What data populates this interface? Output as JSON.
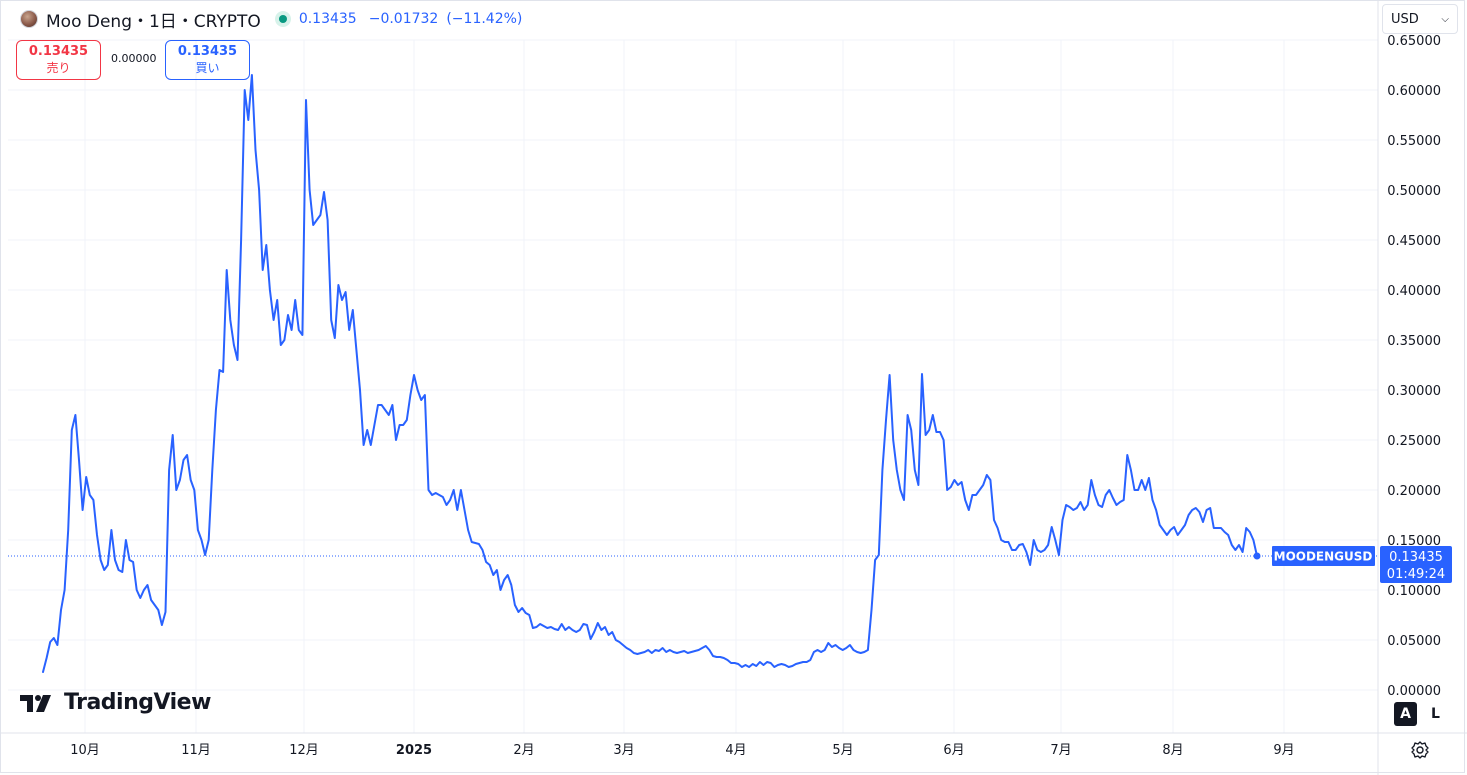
{
  "header": {
    "title": "Moo Deng・1日・CRYPTO",
    "price": "0.13435",
    "change": "−0.01732",
    "change_pct": "(−11.42%)"
  },
  "trade": {
    "sell_price": "0.13435",
    "sell_label": "売り",
    "spread": "0.00000",
    "buy_price": "0.13435",
    "buy_label": "買い"
  },
  "currency": {
    "selected": "USD"
  },
  "logo": {
    "text": "TradingView"
  },
  "buttons": {
    "auto": "A",
    "log": "L"
  },
  "colors": {
    "line": "#2962ff",
    "grid": "#f0f3fa",
    "label_bg": "#2962ff",
    "last_line": "#2962ff"
  },
  "chart_data": {
    "type": "line",
    "x_start": "2024-09-25",
    "y_range": [
      0,
      0.65
    ],
    "y_ticks": [
      "0.00000",
      "0.05000",
      "0.10000",
      "0.15000",
      "0.20000",
      "0.25000",
      "0.30000",
      "0.35000",
      "0.40000",
      "0.45000",
      "0.50000",
      "0.55000",
      "0.60000",
      "0.65000"
    ],
    "x_ticks": [
      "10月",
      "11月",
      "12月",
      "2025",
      "2月",
      "3月",
      "4月",
      "5月",
      "6月",
      "7月",
      "8月",
      "9月"
    ],
    "series": [
      {
        "values": [
          0.018,
          0.032,
          0.048,
          0.052,
          0.045,
          0.08,
          0.1,
          0.16,
          0.26,
          0.275,
          0.23,
          0.18,
          0.213,
          0.195,
          0.19,
          0.155,
          0.13,
          0.12,
          0.125,
          0.16,
          0.13,
          0.12,
          0.118,
          0.15,
          0.13,
          0.128,
          0.1,
          0.092,
          0.1,
          0.105,
          0.09,
          0.085,
          0.08,
          0.065,
          0.078,
          0.22,
          0.255,
          0.2,
          0.21,
          0.23,
          0.235,
          0.21,
          0.2,
          0.16,
          0.15,
          0.135,
          0.15,
          0.22,
          0.28,
          0.32,
          0.318,
          0.42,
          0.37,
          0.345,
          0.33,
          0.45,
          0.6,
          0.57,
          0.615,
          0.54,
          0.5,
          0.42,
          0.445,
          0.4,
          0.37,
          0.39,
          0.345,
          0.35,
          0.375,
          0.36,
          0.39,
          0.36,
          0.355,
          0.59,
          0.5,
          0.465,
          0.47,
          0.475,
          0.498,
          0.47,
          0.37,
          0.352,
          0.405,
          0.39,
          0.398,
          0.36,
          0.38,
          0.34,
          0.3,
          0.245,
          0.26,
          0.245,
          0.265,
          0.285,
          0.285,
          0.28,
          0.275,
          0.285,
          0.25,
          0.265,
          0.265,
          0.27,
          0.295,
          0.315,
          0.3,
          0.29,
          0.295,
          0.2,
          0.195,
          0.197,
          0.195,
          0.193,
          0.185,
          0.19,
          0.2,
          0.18,
          0.2,
          0.18,
          0.16,
          0.148,
          0.147,
          0.146,
          0.14,
          0.128,
          0.125,
          0.115,
          0.12,
          0.1,
          0.11,
          0.115,
          0.105,
          0.085,
          0.078,
          0.082,
          0.077,
          0.075,
          0.062,
          0.063,
          0.066,
          0.064,
          0.062,
          0.063,
          0.061,
          0.06,
          0.066,
          0.06,
          0.063,
          0.06,
          0.058,
          0.06,
          0.066,
          0.065,
          0.051,
          0.058,
          0.067,
          0.06,
          0.063,
          0.055,
          0.058,
          0.05,
          0.048,
          0.045,
          0.042,
          0.04,
          0.037,
          0.036,
          0.037,
          0.038,
          0.04,
          0.037,
          0.04,
          0.039,
          0.042,
          0.038,
          0.04,
          0.038,
          0.037,
          0.038,
          0.039,
          0.037,
          0.038,
          0.039,
          0.04,
          0.042,
          0.044,
          0.04,
          0.034,
          0.033,
          0.033,
          0.032,
          0.03,
          0.027,
          0.027,
          0.026,
          0.023,
          0.025,
          0.023,
          0.026,
          0.024,
          0.028,
          0.025,
          0.028,
          0.027,
          0.023,
          0.025,
          0.026,
          0.025,
          0.023,
          0.024,
          0.026,
          0.027,
          0.028,
          0.028,
          0.03,
          0.038,
          0.04,
          0.038,
          0.04,
          0.047,
          0.043,
          0.045,
          0.042,
          0.04,
          0.042,
          0.045,
          0.04,
          0.038,
          0.037,
          0.038,
          0.04,
          0.08,
          0.13,
          0.135,
          0.22,
          0.27,
          0.315,
          0.25,
          0.22,
          0.2,
          0.19,
          0.275,
          0.26,
          0.22,
          0.205,
          0.316,
          0.255,
          0.26,
          0.275,
          0.258,
          0.258,
          0.25,
          0.2,
          0.203,
          0.21,
          0.205,
          0.208,
          0.19,
          0.18,
          0.195,
          0.195,
          0.2,
          0.205,
          0.215,
          0.21,
          0.17,
          0.162,
          0.15,
          0.148,
          0.148,
          0.14,
          0.14,
          0.145,
          0.146,
          0.138,
          0.125,
          0.15,
          0.14,
          0.138,
          0.14,
          0.145,
          0.163,
          0.15,
          0.135,
          0.17,
          0.185,
          0.183,
          0.18,
          0.182,
          0.188,
          0.18,
          0.185,
          0.21,
          0.195,
          0.185,
          0.183,
          0.195,
          0.2,
          0.192,
          0.185,
          0.188,
          0.19,
          0.235,
          0.22,
          0.2,
          0.2,
          0.21,
          0.2,
          0.212,
          0.19,
          0.18,
          0.165,
          0.16,
          0.155,
          0.16,
          0.163,
          0.155,
          0.16,
          0.165,
          0.175,
          0.18,
          0.182,
          0.178,
          0.168,
          0.18,
          0.182,
          0.162,
          0.162,
          0.162,
          0.158,
          0.155,
          0.145,
          0.14,
          0.145,
          0.138,
          0.162,
          0.158,
          0.15,
          0.134
        ]
      }
    ],
    "last_value_label": "0.13435",
    "last_time_label": "01:49:24",
    "symbol_label": "MOODENGUSD"
  }
}
